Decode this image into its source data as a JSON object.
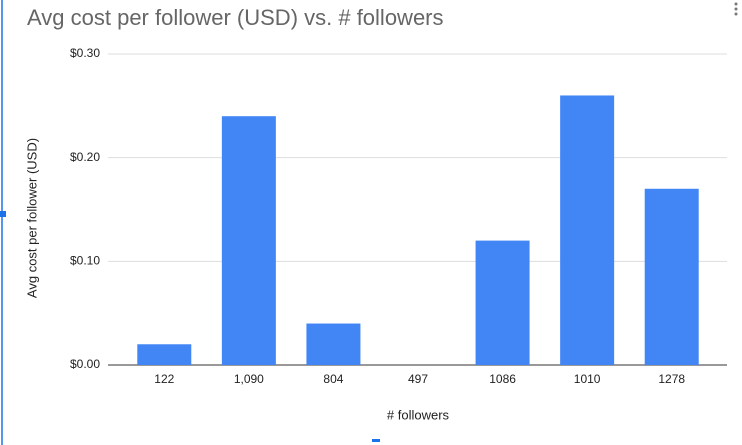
{
  "chart_data": {
    "type": "bar",
    "title": "Avg cost per follower (USD) vs. # followers",
    "x_label": "# followers",
    "y_label": "Avg cost per follower (USD)",
    "categories": [
      "122",
      "1,090",
      "804",
      "497",
      "1086",
      "1010",
      "1278"
    ],
    "values": [
      0.02,
      0.24,
      0.04,
      0,
      0.12,
      0.26,
      0.17
    ],
    "color": "#4285f4",
    "ylim": [
      0,
      0.3
    ],
    "yticks": [
      {
        "value": 0,
        "label": "$0.00"
      },
      {
        "value": 0.1,
        "label": "$0.10"
      },
      {
        "value": 0.2,
        "label": "$0.20"
      },
      {
        "value": 0.3,
        "label": "$0.30"
      }
    ],
    "grid": true
  }
}
